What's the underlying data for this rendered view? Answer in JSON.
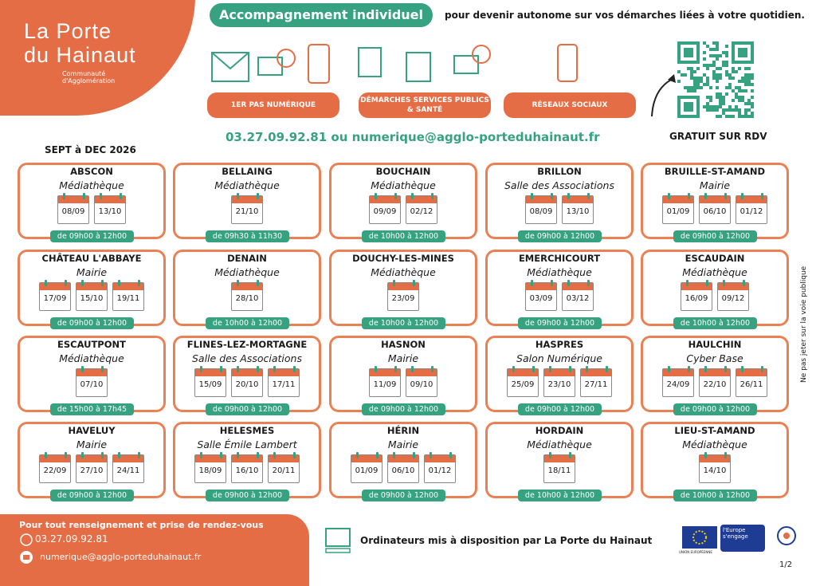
{
  "header": {
    "logo_line1": "La Porte",
    "logo_line2": "du Hainaut",
    "logo_sub": "Communauté d'Agglomération",
    "badge": "Accompagnement individuel",
    "tagline": "pour devenir autonome sur vos démarches liées à votre quotidien.",
    "services": [
      "1ER PAS NUMÉRIQUE",
      "DÉMARCHES SERVICES PUBLICS & SANTÉ",
      "RÉSEAUX SOCIAUX"
    ],
    "qr_caption": "GRATUIT SUR RDV",
    "contact": "03.27.09.92.81 ou numerique@agglo-porteduhainaut.fr",
    "period": "SEPT à DEC 2026"
  },
  "side_note": "Ne pas jeter sur la voie publique",
  "venues": [
    {
      "town": "ABSCON",
      "place": "Médiathèque",
      "dates": [
        "08/09",
        "13/10"
      ],
      "hours": "de 09h00 à 12h00"
    },
    {
      "town": "BELLAING",
      "place": "Médiathèque",
      "dates": [
        "21/10"
      ],
      "hours": "de 09h30 à 11h30"
    },
    {
      "town": "BOUCHAIN",
      "place": "Médiathèque",
      "dates": [
        "09/09",
        "02/12"
      ],
      "hours": "de 10h00 à 12h00"
    },
    {
      "town": "BRILLON",
      "place": "Salle des Associations",
      "dates": [
        "08/09",
        "13/10"
      ],
      "hours": "de 09h00 à 12h00"
    },
    {
      "town": "BRUILLE-ST-AMAND",
      "place": "Mairie",
      "dates": [
        "01/09",
        "06/10",
        "01/12"
      ],
      "hours": "de 09h00 à 12h00"
    },
    {
      "town": "CHÂTEAU L'ABBAYE",
      "place": "Mairie",
      "dates": [
        "17/09",
        "15/10",
        "19/11"
      ],
      "hours": "de 09h00 à 12h00"
    },
    {
      "town": "DENAIN",
      "place": "Médiathèque",
      "dates": [
        "28/10"
      ],
      "hours": "de 10h00 à 12h00"
    },
    {
      "town": "DOUCHY-LES-MINES",
      "place": "Médiathèque",
      "dates": [
        "23/09"
      ],
      "hours": "de 10h00 à 12h00"
    },
    {
      "town": "EMERCHICOURT",
      "place": "Médiathèque",
      "dates": [
        "03/09",
        "03/12"
      ],
      "hours": "de 09h00 à 12h00"
    },
    {
      "town": "ESCAUDAIN",
      "place": "Médiathèque",
      "dates": [
        "16/09",
        "09/12"
      ],
      "hours": "de 10h00 à 12h00"
    },
    {
      "town": "ESCAUTPONT",
      "place": "Médiathèque",
      "dates": [
        "07/10"
      ],
      "hours": "de 15h00 à 17h45"
    },
    {
      "town": "FLINES-LEZ-MORTAGNE",
      "place": "Salle des Associations",
      "dates": [
        "15/09",
        "20/10",
        "17/11"
      ],
      "hours": "de 09h00 à 12h00"
    },
    {
      "town": "HASNON",
      "place": "Mairie",
      "dates": [
        "11/09",
        "09/10"
      ],
      "hours": "de 09h00 à 12h00"
    },
    {
      "town": "HASPRES",
      "place": "Salon Numérique",
      "dates": [
        "25/09",
        "23/10",
        "27/11"
      ],
      "hours": "de 09h00 à 12h00"
    },
    {
      "town": "HAULCHIN",
      "place": "Cyber Base",
      "dates": [
        "24/09",
        "22/10",
        "26/11"
      ],
      "hours": "de 09h00 à 12h00"
    },
    {
      "town": "HAVELUY",
      "place": "Mairie",
      "dates": [
        "22/09",
        "27/10",
        "24/11"
      ],
      "hours": "de 09h00 à 12h00"
    },
    {
      "town": "HELESMES",
      "place": "Salle Émile Lambert",
      "dates": [
        "18/09",
        "16/10",
        "20/11"
      ],
      "hours": "de 09h00 à 12h00"
    },
    {
      "town": "HÉRIN",
      "place": "Mairie",
      "dates": [
        "01/09",
        "06/10",
        "01/12"
      ],
      "hours": "de 09h00 à 12h00"
    },
    {
      "town": "HORDAIN",
      "place": "Médiathèque",
      "dates": [
        "18/11"
      ],
      "hours": "de 10h00 à 12h00"
    },
    {
      "town": "LIEU-ST-AMAND",
      "place": "Médiathèque",
      "dates": [
        "14/10"
      ],
      "hours": "de 10h00 à 12h00"
    }
  ],
  "footer": {
    "info": "Pour tout renseignement et prise de rendez-vous",
    "phone": "03.27.09.92.81",
    "email": "numerique@agglo-porteduhainaut.fr",
    "computers": "Ordinateurs mis à disposition par La Porte du Hainaut",
    "eu_label": "UNION EUROPÉENNE",
    "region_label": "l'Europe s'engage",
    "page": "1/2"
  }
}
